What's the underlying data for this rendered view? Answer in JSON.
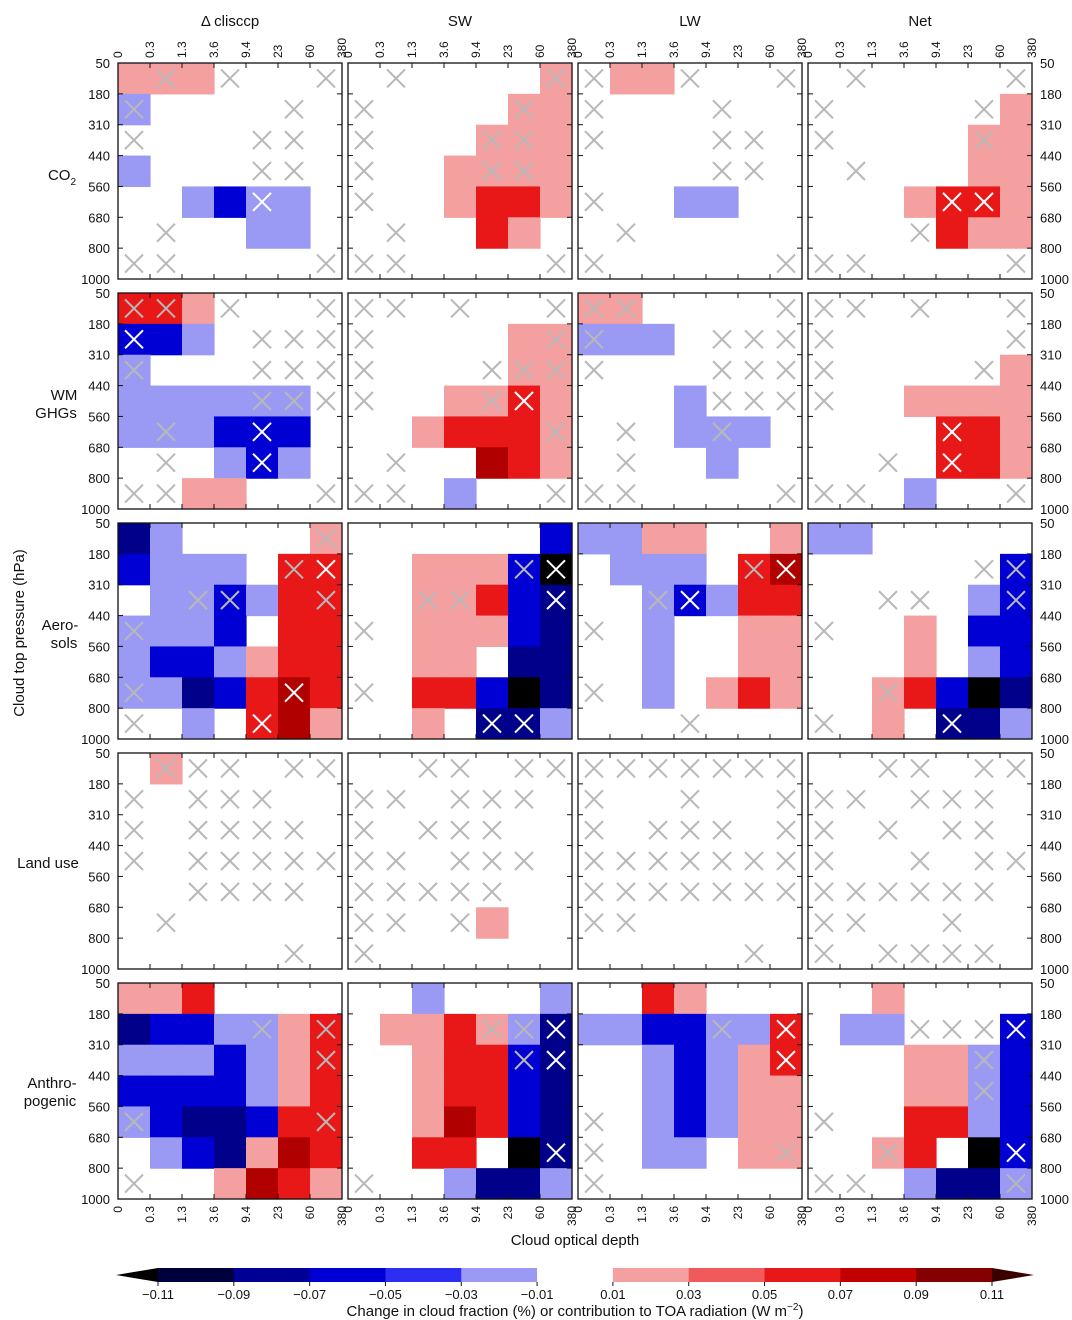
{
  "chart_data": {
    "type": "heatmap",
    "columns": [
      "Δ clisccp",
      "SW",
      "LW",
      "Net"
    ],
    "rows": [
      {
        "label_lines": [
          "CO",
          "2"
        ],
        "label_is_subscript": true
      },
      {
        "label_lines": [
          "WM",
          "GHGs"
        ]
      },
      {
        "label_lines": [
          "Aero-",
          "sols"
        ]
      },
      {
        "label_lines": [
          "Land use"
        ]
      },
      {
        "label_lines": [
          "Anthro-",
          "pogenic"
        ]
      }
    ],
    "x_ticks": [
      "0",
      "0.3",
      "1.3",
      "3.6",
      "9.4",
      "23",
      "60",
      "380"
    ],
    "y_ticks": [
      "50",
      "180",
      "310",
      "440",
      "560",
      "680",
      "800",
      "1000"
    ],
    "xlabel": "Cloud optical depth",
    "ylabel": "Cloud top pressure (hPa)",
    "colorbar": {
      "ticks": [
        "−0.11",
        "−0.09",
        "−0.07",
        "−0.05",
        "−0.03",
        "−0.01",
        "0.01",
        "0.03",
        "0.05",
        "0.07",
        "0.09",
        "0.11"
      ],
      "label": "Change in cloud fraction (%) or contribution to TOA radiation (W m",
      "label_sup": "−2",
      "label_end": ")",
      "colors": [
        "#00003d",
        "#000096",
        "#0000d4",
        "#2e2ef2",
        "#9a9af5",
        "#ffffff",
        "#f5a0a0",
        "#f05a5a",
        "#e81818",
        "#c20000",
        "#850000"
      ]
    },
    "cells": [
      [
        [
          "LW",
          "LW",
          "LW",
          ".",
          ".",
          ".",
          ".",
          "."
        ],
        [
          "lb",
          ".",
          ".",
          ".",
          ".",
          ".",
          ".",
          "."
        ],
        [
          ".",
          ".",
          ".",
          ".",
          ".",
          ".",
          ".",
          "."
        ],
        [
          "lb",
          ".",
          ".",
          ".",
          ".",
          ".",
          ".",
          "."
        ],
        [
          ".",
          ".",
          "lb",
          "b",
          "lb",
          "lb",
          ".",
          "."
        ],
        [
          ".",
          ".",
          ".",
          ".",
          "lb",
          "lb",
          ".",
          "."
        ],
        [
          ".",
          ".",
          ".",
          ".",
          ".",
          ".",
          ".",
          "."
        ]
      ],
      [
        [
          ".",
          ".",
          ".",
          ".",
          ".",
          ".",
          "lr",
          "."
        ],
        [
          ".",
          ".",
          ".",
          ".",
          ".",
          "lr",
          "lr",
          "."
        ],
        [
          ".",
          ".",
          ".",
          ".",
          "lr",
          "lr",
          "lr",
          "."
        ],
        [
          ".",
          ".",
          ".",
          "lr",
          "lr",
          "lr",
          "lr",
          "."
        ],
        [
          ".",
          ".",
          ".",
          "lr",
          "r",
          "r",
          "lr",
          "."
        ],
        [
          ".",
          ".",
          ".",
          ".",
          "r",
          "lr",
          ".",
          "."
        ],
        [
          ".",
          ".",
          ".",
          ".",
          ".",
          ".",
          ".",
          "."
        ]
      ],
      [
        [
          ".",
          "lr",
          "lr",
          ".",
          ".",
          ".",
          ".",
          "."
        ],
        [
          ".",
          ".",
          ".",
          ".",
          ".",
          ".",
          ".",
          "."
        ],
        [
          ".",
          ".",
          ".",
          ".",
          ".",
          ".",
          ".",
          "."
        ],
        [
          ".",
          ".",
          ".",
          ".",
          ".",
          ".",
          ".",
          "."
        ],
        [
          ".",
          ".",
          ".",
          "lb",
          "lb",
          ".",
          ".",
          "."
        ],
        [
          ".",
          ".",
          ".",
          ".",
          ".",
          ".",
          ".",
          "."
        ],
        [
          ".",
          ".",
          ".",
          ".",
          ".",
          ".",
          ".",
          "."
        ]
      ],
      [
        [
          ".",
          ".",
          ".",
          ".",
          ".",
          ".",
          ".",
          "."
        ],
        [
          ".",
          ".",
          ".",
          ".",
          ".",
          ".",
          "lr",
          "."
        ],
        [
          ".",
          ".",
          ".",
          ".",
          ".",
          "lr",
          "lr",
          "."
        ],
        [
          ".",
          ".",
          ".",
          ".",
          ".",
          "lr",
          "lr",
          "."
        ],
        [
          ".",
          ".",
          ".",
          "lr",
          "r",
          "r",
          "lr",
          "."
        ],
        [
          ".",
          ".",
          ".",
          ".",
          "r",
          "lr",
          "lr",
          "."
        ],
        [
          ".",
          ".",
          ".",
          ".",
          ".",
          ".",
          ".",
          "."
        ]
      ]
    ],
    "crosses": [
      [
        [
          0,
          1
        ],
        [
          0,
          3
        ],
        [
          0,
          6
        ],
        [
          1,
          0
        ],
        [
          1,
          5
        ],
        [
          2,
          0
        ],
        [
          2,
          4
        ],
        [
          2,
          5
        ],
        [
          3,
          4
        ],
        [
          3,
          5
        ],
        [
          4,
          4
        ],
        [
          5,
          1
        ],
        [
          6,
          0
        ],
        [
          6,
          1
        ],
        [
          6,
          6
        ]
      ],
      [
        [
          0,
          1
        ],
        [
          0,
          6
        ],
        [
          1,
          0
        ],
        [
          1,
          5
        ],
        [
          2,
          0
        ],
        [
          2,
          4
        ],
        [
          2,
          5
        ],
        [
          3,
          0
        ],
        [
          3,
          4
        ],
        [
          3,
          5
        ],
        [
          4,
          0
        ],
        [
          5,
          1
        ],
        [
          6,
          0
        ],
        [
          6,
          1
        ],
        [
          6,
          6
        ]
      ],
      [
        [
          0,
          0
        ],
        [
          0,
          3
        ],
        [
          0,
          6
        ],
        [
          1,
          0
        ],
        [
          1,
          4
        ],
        [
          2,
          0
        ],
        [
          2,
          4
        ],
        [
          2,
          5
        ],
        [
          3,
          4
        ],
        [
          3,
          5
        ],
        [
          4,
          0
        ],
        [
          5,
          1
        ],
        [
          6,
          0
        ],
        [
          6,
          6
        ]
      ],
      [
        [
          0,
          1
        ],
        [
          0,
          6
        ],
        [
          1,
          0
        ],
        [
          1,
          5
        ],
        [
          2,
          0
        ],
        [
          2,
          5
        ],
        [
          3,
          1
        ],
        [
          4,
          4
        ],
        [
          4,
          5
        ],
        [
          5,
          3
        ],
        [
          6,
          0
        ],
        [
          6,
          1
        ],
        [
          6,
          6
        ]
      ]
    ]
  }
}
